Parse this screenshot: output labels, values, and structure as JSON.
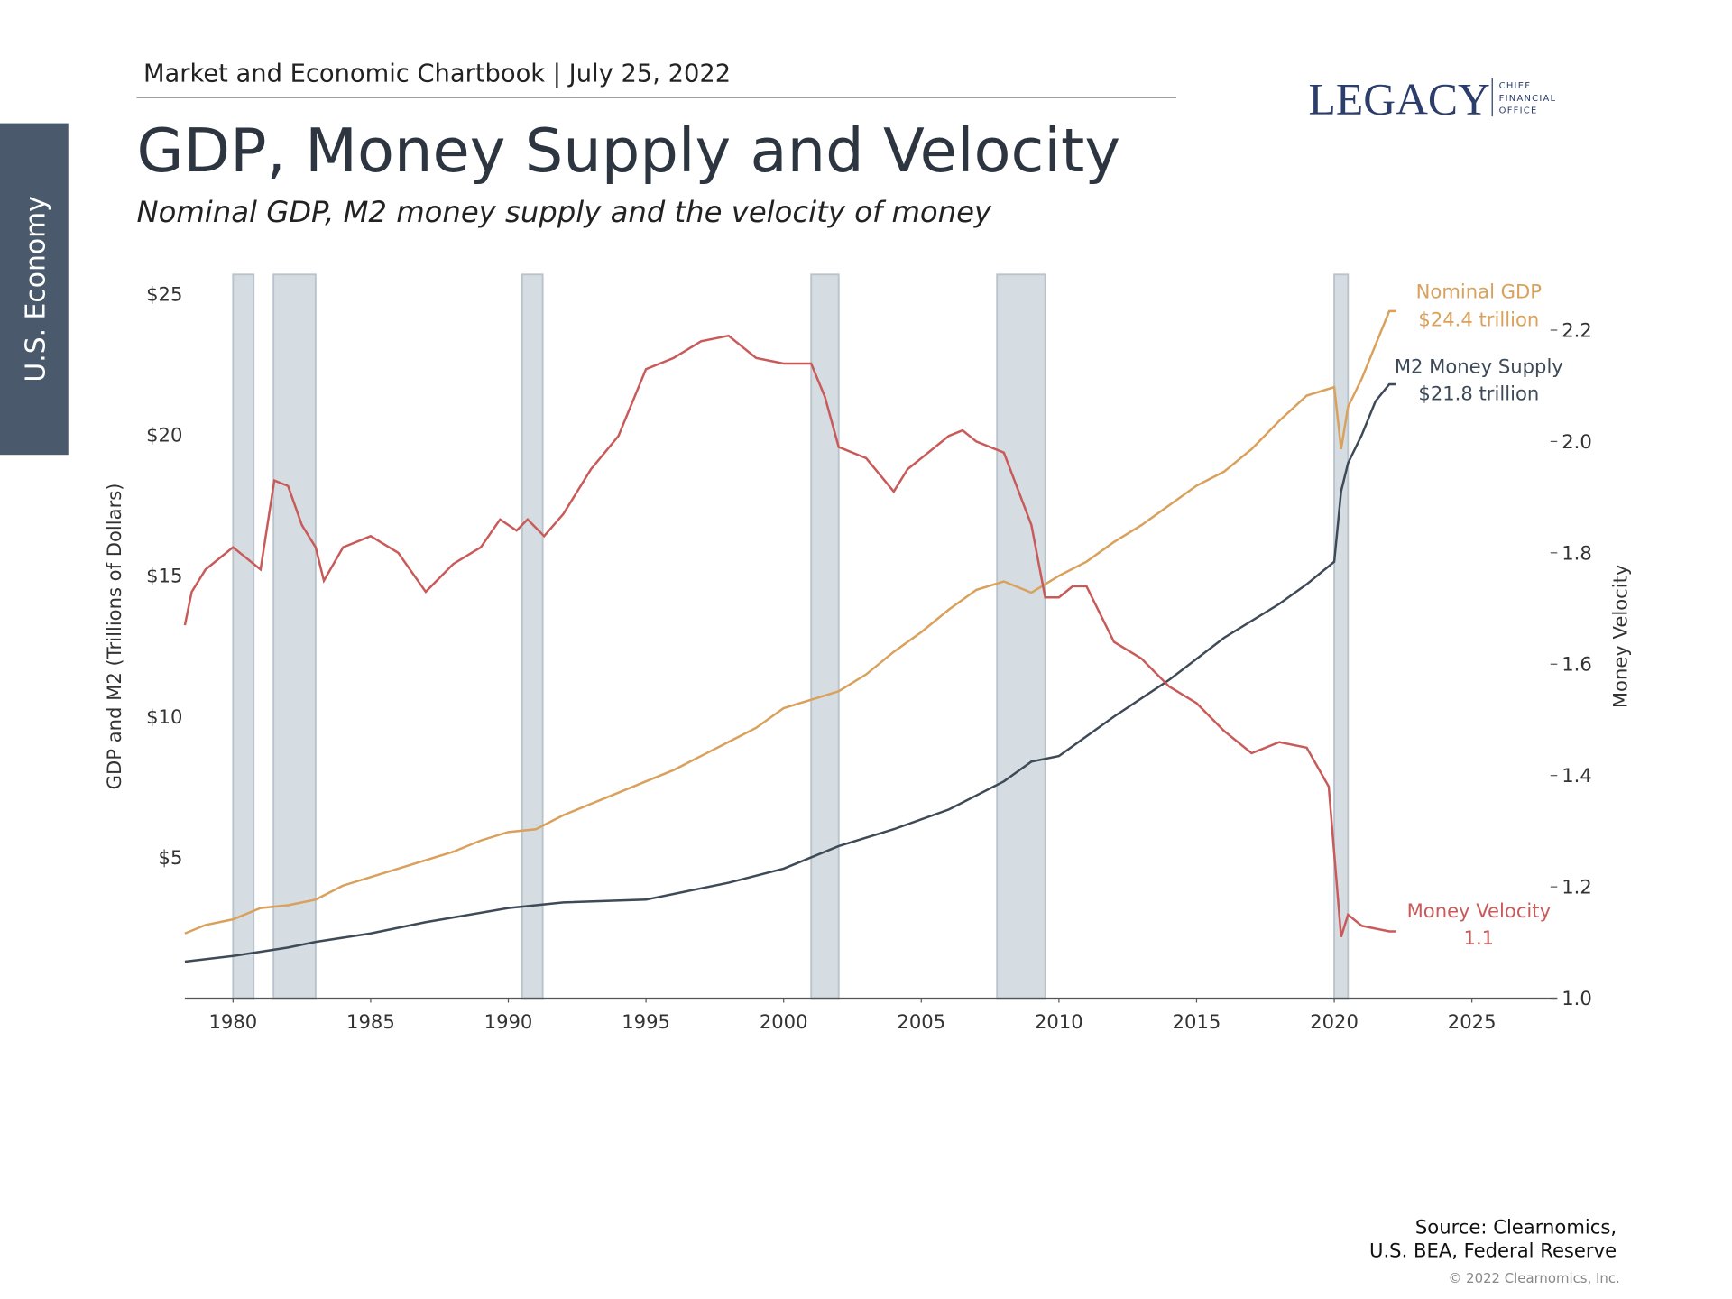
{
  "header": {
    "chartbook": "Market and Economic Chartbook | July 25, 2022",
    "logo": "LEGACY",
    "logo_sub": [
      "CHIEF",
      "FINANCIAL",
      "OFFICE"
    ],
    "section": "U.S. Economy"
  },
  "chart_data": {
    "type": "line",
    "title": "GDP, Money Supply and Velocity",
    "subtitle": "Nominal GDP, M2 money supply and the velocity of money",
    "y_label": "GDP and M2 (Trillions of Dollars)",
    "y2_label": "Money Velocity",
    "xlim": [
      1978.25,
      2028.1
    ],
    "xticks": [
      1980,
      1985,
      1990,
      1995,
      2000,
      2005,
      2010,
      2015,
      2020,
      2025
    ],
    "ylim": [
      0,
      25.7
    ],
    "yticks": [
      {
        "value": 5,
        "label": "$5"
      },
      {
        "value": 10,
        "label": "$10"
      },
      {
        "value": 15,
        "label": "$15"
      },
      {
        "value": 20,
        "label": "$20"
      },
      {
        "value": 25,
        "label": "$25"
      }
    ],
    "y2lim": [
      1.0,
      2.3
    ],
    "y2ticks": [
      {
        "value": 1.0,
        "label": "1.0"
      },
      1.2,
      1.4,
      1.6,
      1.8,
      {
        "value": 2.0,
        "label": "2.0"
      },
      2.2
    ],
    "recessions": [
      [
        1980,
        1980.75
      ],
      [
        1981.47,
        1983
      ],
      [
        1990.5,
        1991.25
      ],
      [
        2001,
        2002
      ],
      [
        2007.75,
        2009.5
      ],
      [
        2020,
        2020.5
      ]
    ],
    "series": [
      {
        "name": "Nominal GDP",
        "label": [
          "Nominal GDP",
          "$24.4 trillion"
        ],
        "color": "#d9a15c",
        "x": [
          1978.25,
          1979,
          1980,
          1981,
          1982,
          1983,
          1984,
          1985,
          1986,
          1987,
          1988,
          1989,
          1990,
          1991,
          1992,
          1993,
          1994,
          1995,
          1996,
          1997,
          1998,
          1999,
          2000,
          2001,
          2002,
          2003,
          2004,
          2005,
          2006,
          2007,
          2008,
          2009,
          2010,
          2011,
          2012,
          2013,
          2014,
          2015,
          2016,
          2017,
          2018,
          2019,
          2020,
          2020.25,
          2020.5,
          2021,
          2021.5,
          2022,
          2022.25
        ],
        "values": [
          2.3,
          2.6,
          2.8,
          3.2,
          3.3,
          3.5,
          4.0,
          4.3,
          4.6,
          4.9,
          5.2,
          5.6,
          5.9,
          6.0,
          6.5,
          6.9,
          7.3,
          7.7,
          8.1,
          8.6,
          9.1,
          9.6,
          10.3,
          10.6,
          10.9,
          11.5,
          12.3,
          13.0,
          13.8,
          14.5,
          14.8,
          14.4,
          15.0,
          15.5,
          16.2,
          16.8,
          17.5,
          18.2,
          18.7,
          19.5,
          20.5,
          21.4,
          21.7,
          19.5,
          21.0,
          22.0,
          23.2,
          24.4,
          24.4
        ]
      },
      {
        "name": "M2 Money Supply",
        "label": [
          "M2 Money Supply",
          "$21.8 trillion"
        ],
        "color": "#3e4a57",
        "x": [
          1978.25,
          1980,
          1982,
          1983,
          1985,
          1987,
          1990,
          1992,
          1995,
          1998,
          2000,
          2002,
          2004,
          2006,
          2008,
          2009,
          2010,
          2011,
          2012,
          2014,
          2016,
          2018,
          2019,
          2020,
          2020.25,
          2020.5,
          2021,
          2021.5,
          2022,
          2022.25
        ],
        "values": [
          1.3,
          1.5,
          1.8,
          2.0,
          2.3,
          2.7,
          3.2,
          3.4,
          3.5,
          4.1,
          4.6,
          5.4,
          6.0,
          6.7,
          7.7,
          8.4,
          8.6,
          9.3,
          10.0,
          11.3,
          12.8,
          14.0,
          14.7,
          15.5,
          18.0,
          19.0,
          20.0,
          21.2,
          21.8,
          21.8
        ]
      },
      {
        "name": "Money Velocity",
        "label": [
          "Money Velocity",
          "1.1"
        ],
        "color": "#c95a5a",
        "axis": "y2",
        "x": [
          1978.25,
          1978.5,
          1979,
          1980,
          1981,
          1981.5,
          1982,
          1982.5,
          1983,
          1983.3,
          1984,
          1985,
          1986,
          1987,
          1988,
          1989,
          1989.7,
          1990.3,
          1990.7,
          1991.3,
          1992,
          1993,
          1994,
          1995,
          1996,
          1997,
          1998,
          1999,
          2000,
          2001,
          2001.5,
          2002,
          2003,
          2004,
          2004.5,
          2005,
          2006,
          2006.5,
          2007,
          2008,
          2009,
          2009.5,
          2010,
          2010.5,
          2011,
          2012,
          2013,
          2014,
          2015,
          2016,
          2017,
          2018,
          2019,
          2019.8,
          2020.25,
          2020.5,
          2021,
          2022,
          2022.25
        ],
        "values": [
          1.67,
          1.73,
          1.77,
          1.81,
          1.77,
          1.93,
          1.92,
          1.85,
          1.81,
          1.75,
          1.81,
          1.83,
          1.8,
          1.73,
          1.78,
          1.81,
          1.86,
          1.84,
          1.86,
          1.83,
          1.87,
          1.95,
          2.01,
          2.13,
          2.15,
          2.18,
          2.19,
          2.15,
          2.14,
          2.14,
          2.08,
          1.99,
          1.97,
          1.91,
          1.95,
          1.97,
          2.01,
          2.02,
          2.0,
          1.98,
          1.85,
          1.72,
          1.72,
          1.74,
          1.74,
          1.64,
          1.61,
          1.56,
          1.53,
          1.48,
          1.44,
          1.46,
          1.45,
          1.38,
          1.11,
          1.15,
          1.13,
          1.12,
          1.12
        ]
      }
    ]
  },
  "source": [
    "Source: Clearnomics,",
    "U.S. BEA, Federal Reserve"
  ],
  "copyright": "© 2022 Clearnomics, Inc."
}
